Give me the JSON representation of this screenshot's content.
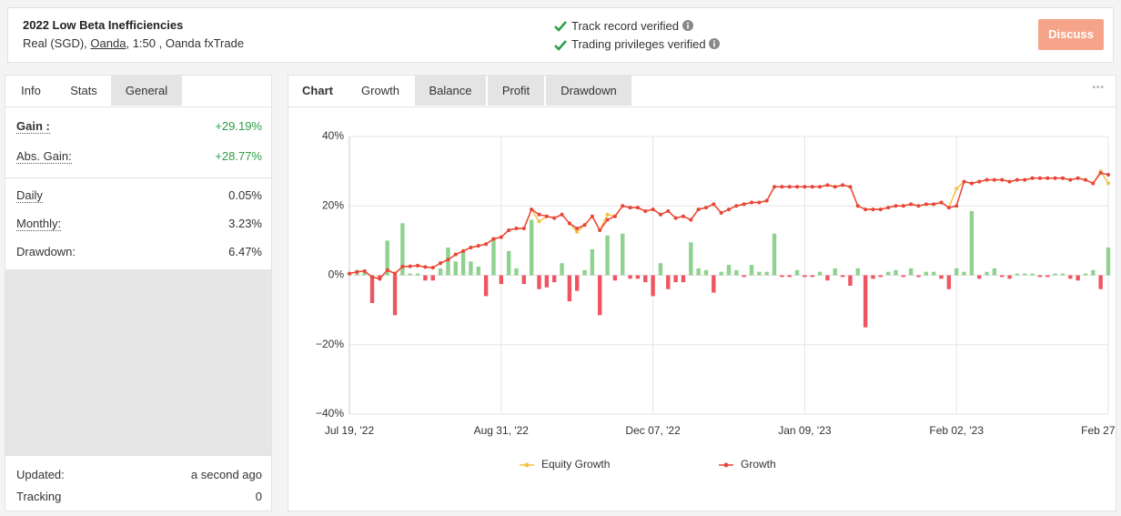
{
  "header": {
    "title": "2022 Low Beta Inefficiencies",
    "account_prefix": "Real (SGD),",
    "broker": "Oanda",
    "account_suffix": ", 1:50 , Oanda fxTrade",
    "verifications": [
      "Track record verified",
      "Trading privileges verified"
    ],
    "button": "Discuss"
  },
  "stats": {
    "tabs": [
      "Info",
      "Stats",
      "General"
    ],
    "active_tab": 1,
    "primary": [
      {
        "label": "Gain :",
        "value": "+29.19%"
      },
      {
        "label": "Abs. Gain:",
        "value": "+28.77%"
      }
    ],
    "secondary": [
      {
        "label": "Daily",
        "value": "0.05%"
      },
      {
        "label": "Monthly:",
        "value": "3.23%"
      },
      {
        "label": "Drawdown:",
        "value": "6.47%"
      }
    ],
    "footer": [
      {
        "label": "Updated:",
        "value": "a second ago"
      },
      {
        "label": "Tracking",
        "value": "0"
      }
    ]
  },
  "chart_panel": {
    "heading": "Chart",
    "tabs": [
      "Growth",
      "Balance",
      "Profit",
      "Drawdown"
    ],
    "active_tab": 0,
    "menu": "•••"
  },
  "chart_data": {
    "type": "line",
    "categories": [
      "Jul 19, '22",
      null,
      null,
      null,
      null,
      null,
      null,
      null,
      null,
      null,
      null,
      null,
      null,
      null,
      null,
      null,
      null,
      null,
      null,
      null,
      "Aug 31, '22",
      null,
      null,
      null,
      null,
      null,
      null,
      null,
      null,
      null,
      null,
      null,
      null,
      null,
      null,
      null,
      null,
      null,
      null,
      null,
      "Dec 07, '22",
      null,
      null,
      null,
      null,
      null,
      null,
      null,
      null,
      null,
      null,
      null,
      null,
      null,
      null,
      null,
      null,
      null,
      null,
      null,
      "Jan 09, '23",
      null,
      null,
      null,
      null,
      null,
      null,
      null,
      null,
      null,
      null,
      null,
      null,
      null,
      null,
      null,
      null,
      null,
      null,
      null,
      "Feb 02, '23",
      null,
      null,
      null,
      null,
      null,
      null,
      null,
      null,
      null,
      null,
      null,
      null,
      null,
      null,
      null,
      null,
      null,
      null,
      null,
      "Feb 27, '23"
    ],
    "ylim": [
      -40,
      40
    ],
    "yticks": [
      {
        "value": -40,
        "label": "−40%"
      },
      {
        "value": -20,
        "label": "−20%"
      },
      {
        "value": 0,
        "label": "0%"
      },
      {
        "value": 20,
        "label": "20%"
      },
      {
        "value": 40,
        "label": "40%"
      }
    ],
    "grid": true,
    "legend": "bottom",
    "series": [
      {
        "type": "bar",
        "color": "#8fd18f",
        "negative_color": "#ef5561",
        "values": [
          0.5,
          1.5,
          1,
          -8,
          -1,
          10,
          -11.5,
          15,
          0.5,
          0.5,
          -1.5,
          -1.5,
          2,
          8,
          4,
          7,
          4,
          2.5,
          -6,
          11,
          -2.5,
          7,
          2,
          -2.5,
          16,
          -4,
          -3.5,
          -2,
          3.5,
          -7.5,
          -4.5,
          1.5,
          7.5,
          -11.5,
          11.5,
          -1.5,
          12,
          -1,
          -1,
          -2,
          -6,
          3.5,
          -4,
          -2,
          -2,
          9.5,
          2,
          1.5,
          -5,
          1,
          3,
          1.5,
          -0.5,
          3,
          1,
          1,
          12,
          -0.5,
          -0.5,
          1.5,
          -0.5,
          -0.5,
          1,
          -1.5,
          2,
          -0.5,
          -3,
          2,
          -15,
          -1,
          -0.5,
          1,
          1.5,
          -0.5,
          2,
          -0.5,
          1,
          1,
          -1,
          -4,
          2,
          1,
          18.5,
          -1,
          1,
          2,
          -0.5,
          -1,
          0.5,
          0.5,
          0.5,
          -0.5,
          -0.5,
          0.5,
          0.5,
          -1,
          -1.5,
          0.5,
          1.5,
          -4,
          8
        ]
      },
      {
        "type": "line",
        "name": "Equity Growth",
        "color": "#f5c342",
        "values": [
          0.5,
          1,
          1.2,
          -0.5,
          -1,
          1.5,
          0.5,
          2.5,
          2.6,
          2.8,
          2.4,
          2.2,
          3.5,
          4.5,
          6,
          7,
          8,
          8.5,
          9,
          10.5,
          11,
          13,
          13.5,
          13.5,
          19,
          15.5,
          17,
          16.5,
          17.5,
          15,
          12.5,
          14.5,
          17,
          13,
          17.5,
          17,
          20,
          19.5,
          19.5,
          18.5,
          19,
          17.5,
          18.5,
          16.5,
          17,
          16,
          19,
          19.5,
          20.5,
          18,
          19,
          20,
          20.5,
          21,
          21,
          21.5,
          25.5,
          25.5,
          25.5,
          25.5,
          25.5,
          25.5,
          25.5,
          26,
          25.5,
          26,
          25.5,
          20,
          19,
          19,
          19,
          19.5,
          20,
          20,
          20.5,
          20,
          20.5,
          20.5,
          21,
          19.5,
          25,
          27,
          26.5,
          27,
          27.5,
          27.5,
          27.5,
          27,
          27.5,
          27.5,
          28,
          28,
          28,
          28,
          28,
          27.5,
          28,
          27.5,
          26.5,
          30,
          26.5
        ]
      },
      {
        "type": "line",
        "name": "Growth",
        "color": "#e8453c",
        "values": [
          0.5,
          1,
          1.2,
          -0.5,
          -1,
          1.5,
          0.5,
          2.5,
          2.6,
          2.8,
          2.4,
          2.2,
          3.5,
          4.5,
          6,
          7,
          8,
          8.5,
          9,
          10.5,
          11,
          13,
          13.5,
          13.5,
          19,
          17.5,
          17,
          16.5,
          17.5,
          15,
          13.5,
          14.5,
          17,
          13,
          16,
          17,
          20,
          19.5,
          19.5,
          18.5,
          19,
          17.5,
          18.5,
          16.5,
          17,
          16,
          19,
          19.5,
          20.5,
          18,
          19,
          20,
          20.5,
          21,
          21,
          21.5,
          25.5,
          25.5,
          25.5,
          25.5,
          25.5,
          25.5,
          25.5,
          26,
          25.5,
          26,
          25.5,
          20,
          19,
          19,
          19,
          19.5,
          20,
          20,
          20.5,
          20,
          20.5,
          20.5,
          21,
          19.5,
          20,
          27,
          26.5,
          27,
          27.5,
          27.5,
          27.5,
          27,
          27.5,
          27.5,
          28,
          28,
          28,
          28,
          28,
          27.5,
          28,
          27.5,
          26.5,
          29.5,
          29
        ]
      }
    ]
  }
}
